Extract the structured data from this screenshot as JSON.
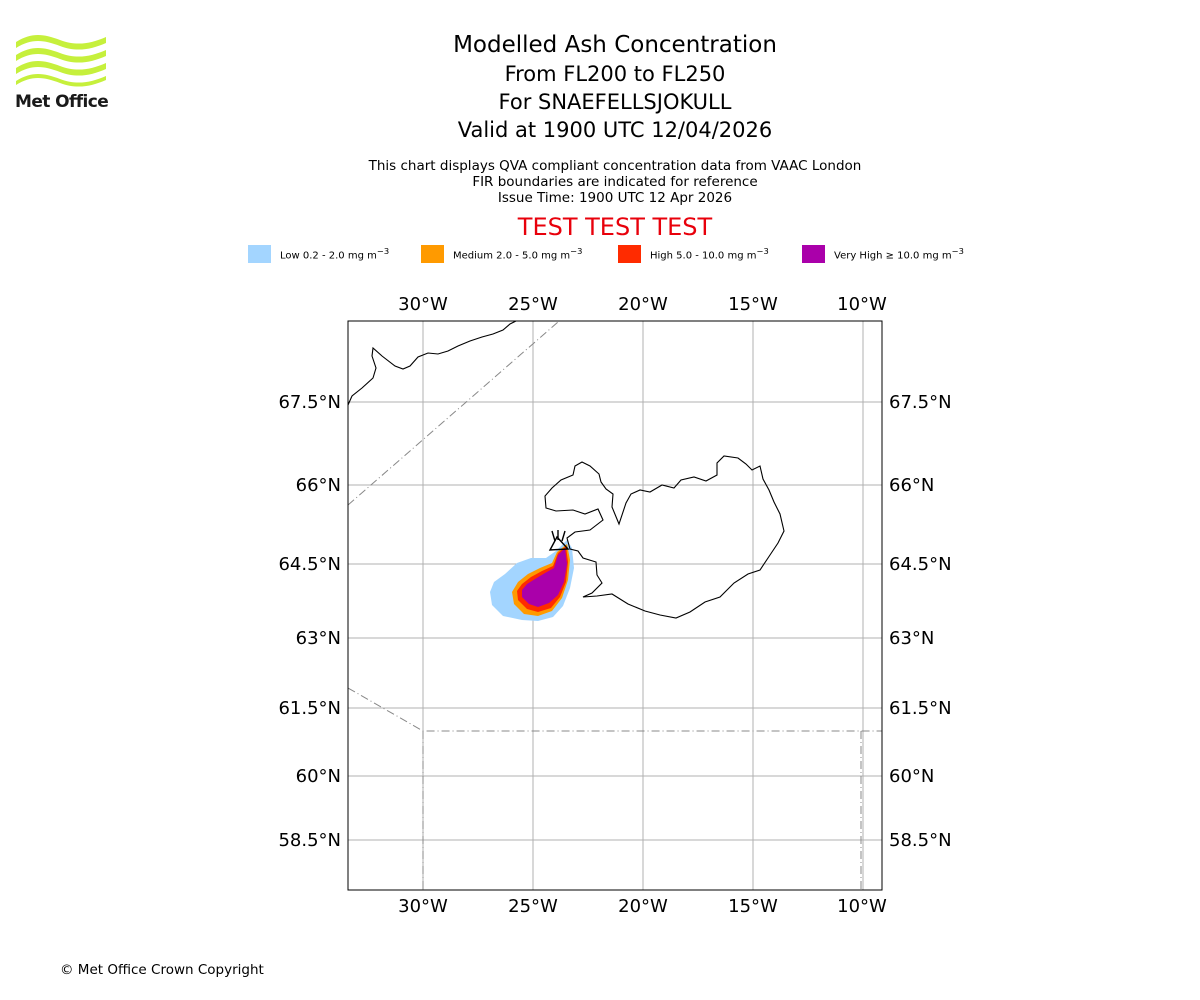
{
  "header": {
    "logo_text": "Met Office",
    "title": "Modelled Ash Concentration",
    "flight_levels": "From FL200 to FL250",
    "volcano": "For SNAEFELLSJOKULL",
    "valid_time": "Valid at 1900 UTC 12/04/2026"
  },
  "subtitle": {
    "line1": "This chart displays QVA compliant concentration data from VAAC London",
    "line2": "FIR boundaries are indicated for reference",
    "issue_time": "Issue Time: 1900 UTC 12 Apr 2026"
  },
  "test_banner": "TEST TEST TEST",
  "legend": {
    "items": [
      {
        "label": "Low 0.2 - 2.0 mg m",
        "unit_sup": "−3",
        "color": "#a3d5ff"
      },
      {
        "label": "Medium 2.0 - 5.0 mg m",
        "unit_sup": "−3",
        "color": "#ff9a00"
      },
      {
        "label": "High 5.0 - 10.0 mg m",
        "unit_sup": "−3",
        "color": "#ff2b00"
      },
      {
        "label": "Very High ≥ 10.0 mg m",
        "unit_sup": "−3",
        "color": "#aa00aa"
      }
    ]
  },
  "map": {
    "lon_labels": [
      "30°W",
      "25°W",
      "20°W",
      "15°W",
      "10°W"
    ],
    "lat_labels": [
      "67.5°N",
      "66°N",
      "64.5°N",
      "63°N",
      "61.5°N",
      "60°N",
      "58.5°N"
    ],
    "coastline_color": "#000000",
    "grid_color": "#b0b0b0",
    "fir_color": "#888888"
  },
  "footer": {
    "copyright": "© Met Office Crown Copyright"
  }
}
